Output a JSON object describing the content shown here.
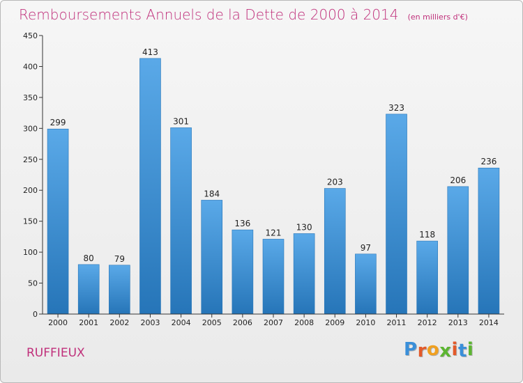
{
  "chart_data": {
    "type": "bar",
    "title": "Remboursements Annuels de la Dette de 2000 à 2014",
    "subtitle": "(en milliers d'€)",
    "categories": [
      "2000",
      "2001",
      "2002",
      "2003",
      "2004",
      "2005",
      "2006",
      "2007",
      "2008",
      "2009",
      "2010",
      "2011",
      "2012",
      "2013",
      "2014"
    ],
    "values": [
      299,
      80,
      79,
      413,
      301,
      184,
      136,
      121,
      130,
      203,
      97,
      323,
      118,
      206,
      236
    ],
    "ylim": [
      0,
      450
    ],
    "yticks": [
      0,
      50,
      100,
      150,
      200,
      250,
      300,
      350,
      400,
      450
    ],
    "grid": false,
    "legend": "none",
    "bar_color": "#3d8fd6",
    "bar_color_light": "#5aa9e8",
    "bar_color_dark": "#2675b8"
  },
  "footer": {
    "commune": "RUFFIEUX"
  },
  "logo": {
    "text": "Proxiti",
    "letters": [
      "P",
      "r",
      "o",
      "x",
      "i",
      "t",
      "i"
    ],
    "letter_colors": [
      "#3a8fd9",
      "#e35a2a",
      "#f0a020",
      "#5cb531",
      "#e35a2a",
      "#3a8fd9",
      "#5cb531"
    ]
  },
  "colors": {
    "accent": "#c0307b",
    "axis": "#333333"
  }
}
